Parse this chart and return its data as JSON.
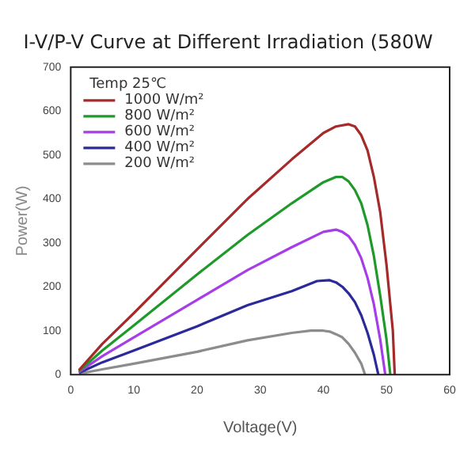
{
  "chart_data": {
    "type": "line",
    "title": "I-V/P-V Curve at Different Irradiation (580W",
    "xlabel": "Voltage(V)",
    "ylabel": "Power(W)",
    "legend_title": "Temp 25℃",
    "legend": "top left",
    "grid": false,
    "marker": "none",
    "line_style": "solid",
    "xlim": [
      0,
      60
    ],
    "xticks": [
      0,
      10,
      20,
      30,
      40,
      50,
      60
    ],
    "ylim": [
      0,
      700
    ],
    "yticks": [
      0,
      100,
      200,
      300,
      400,
      500,
      600,
      700
    ],
    "series": [
      {
        "name": "1000 W/m²",
        "color": "#a52a2a",
        "x": [
          1.3,
          5,
          10,
          20,
          28,
          35,
          40,
          42,
          44,
          45,
          46,
          47,
          48,
          49,
          50,
          51,
          51.3
        ],
        "values": [
          10,
          70,
          140,
          285,
          400,
          490,
          550,
          565,
          570,
          565,
          545,
          510,
          450,
          370,
          250,
          100,
          0
        ]
      },
      {
        "name": "800 W/m²",
        "color": "#1f9a2a",
        "x": [
          1.3,
          5,
          10,
          20,
          28,
          35,
          40,
          42,
          43,
          44,
          45,
          46,
          47,
          48,
          49,
          50,
          50.6
        ],
        "values": [
          8,
          55,
          112,
          228,
          318,
          390,
          438,
          450,
          450,
          440,
          420,
          390,
          340,
          270,
          180,
          80,
          0
        ]
      },
      {
        "name": "600 W/m²",
        "color": "#a63de8",
        "x": [
          1.3,
          5,
          10,
          20,
          28,
          35,
          40,
          42,
          43,
          44,
          45,
          46,
          47,
          48,
          49,
          49.8
        ],
        "values": [
          6,
          42,
          85,
          170,
          238,
          290,
          325,
          330,
          325,
          315,
          295,
          265,
          220,
          160,
          80,
          0
        ]
      },
      {
        "name": "400 W/m²",
        "color": "#2a2a9a",
        "x": [
          1.3,
          5,
          10,
          20,
          28,
          35,
          39,
          41,
          42,
          43,
          44,
          45,
          46,
          47,
          48,
          48.7
        ],
        "values": [
          4,
          28,
          55,
          110,
          158,
          190,
          213,
          215,
          210,
          200,
          185,
          165,
          135,
          95,
          45,
          0
        ]
      },
      {
        "name": "200 W/m²",
        "color": "#8c8c8c",
        "x": [
          1.3,
          5,
          10,
          20,
          28,
          35,
          38,
          40,
          41,
          42,
          43,
          44,
          45,
          46,
          46.6
        ],
        "values": [
          2,
          12,
          25,
          52,
          78,
          95,
          100,
          100,
          98,
          92,
          85,
          70,
          50,
          25,
          0
        ]
      }
    ]
  }
}
